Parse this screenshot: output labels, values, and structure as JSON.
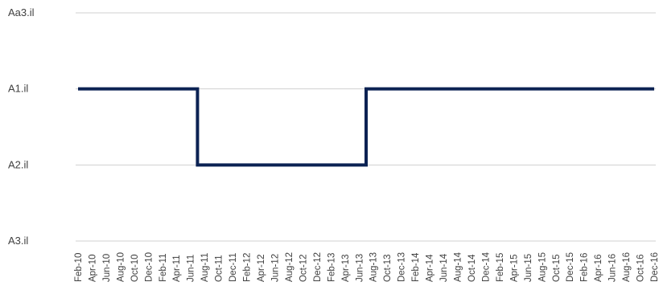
{
  "chart_data": {
    "type": "line",
    "step": true,
    "y_categories": [
      "A3.il",
      "A2.il",
      "A1.il",
      "Aa3.il"
    ],
    "x": [
      "Feb-10",
      "Apr-10",
      "Jun-10",
      "Aug-10",
      "Oct-10",
      "Dec-10",
      "Feb-11",
      "Apr-11",
      "Jun-11",
      "Aug-11",
      "Oct-11",
      "Dec-11",
      "Feb-12",
      "Apr-12",
      "Jun-12",
      "Aug-12",
      "Oct-12",
      "Dec-12",
      "Feb-13",
      "Apr-13",
      "Jun-13",
      "Aug-13",
      "Oct-13",
      "Dec-13",
      "Feb-14",
      "Apr-14",
      "Jun-14",
      "Aug-14",
      "Oct-14",
      "Dec-14",
      "Feb-15",
      "Apr-15",
      "Jun-15",
      "Aug-15",
      "Oct-15",
      "Dec-15",
      "Feb-16",
      "Apr-16",
      "Jun-16",
      "Aug-16",
      "Oct-16",
      "Dec-16"
    ],
    "series": [
      {
        "color": "#0b2253",
        "values": [
          "A1.il",
          "A1.il",
          "A1.il",
          "A1.il",
          "A1.il",
          "A1.il",
          "A1.il",
          "A1.il",
          "A1.il",
          "A2.il",
          "A2.il",
          "A2.il",
          "A2.il",
          "A2.il",
          "A2.il",
          "A2.il",
          "A2.il",
          "A2.il",
          "A2.il",
          "A2.il",
          "A2.il",
          "A1.il",
          "A1.il",
          "A1.il",
          "A1.il",
          "A1.il",
          "A1.il",
          "A1.il",
          "A1.il",
          "A1.il",
          "A1.il",
          "A1.il",
          "A1.il",
          "A1.il",
          "A1.il",
          "A1.il",
          "A1.il",
          "A1.il",
          "A1.il",
          "A1.il",
          "A1.il",
          "A1.il"
        ]
      }
    ],
    "grid": true,
    "legend": "none"
  }
}
